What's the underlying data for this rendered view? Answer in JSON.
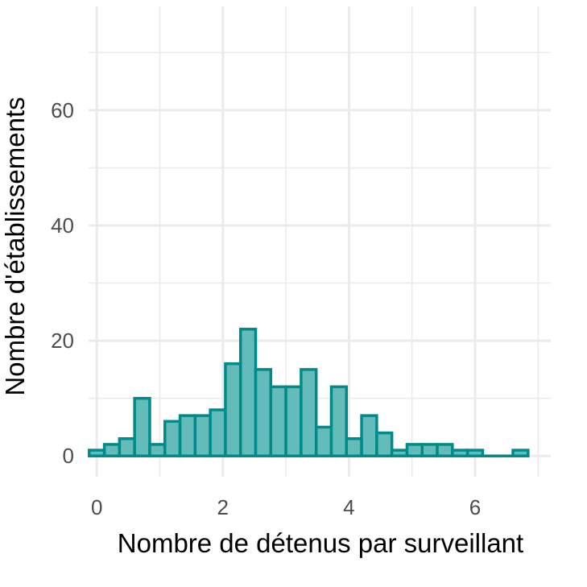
{
  "chart_data": {
    "type": "bar",
    "title": "",
    "xlabel": "Nombre de détenus par surveillant",
    "ylabel": "Nombre d'établissements",
    "xlim": [
      -0.13,
      7.2
    ],
    "ylim": [
      -3.6,
      78
    ],
    "x_ticks": [
      0,
      2,
      4,
      6
    ],
    "y_ticks": [
      0,
      20,
      40,
      60
    ],
    "grid": true,
    "bin_width": 0.24,
    "bins_start": [
      -0.12,
      0.12,
      0.36,
      0.6,
      0.84,
      1.08,
      1.32,
      1.56,
      1.8,
      2.04,
      2.28,
      2.52,
      2.76,
      3.0,
      3.24,
      3.48,
      3.72,
      3.96,
      4.2,
      4.44,
      4.68,
      4.92,
      5.16,
      5.4,
      5.64,
      5.88,
      6.12,
      6.36,
      6.6
    ],
    "counts": [
      1,
      2,
      3,
      10,
      2,
      6,
      7,
      7,
      8,
      16,
      22,
      15,
      12,
      12,
      15,
      5,
      12,
      3,
      7,
      4,
      1,
      2,
      2,
      2,
      1,
      1,
      0,
      0,
      1
    ],
    "colors": {
      "fill": "#5bb8b6",
      "stroke": "#008b8b",
      "grid": "#ebebeb"
    }
  }
}
